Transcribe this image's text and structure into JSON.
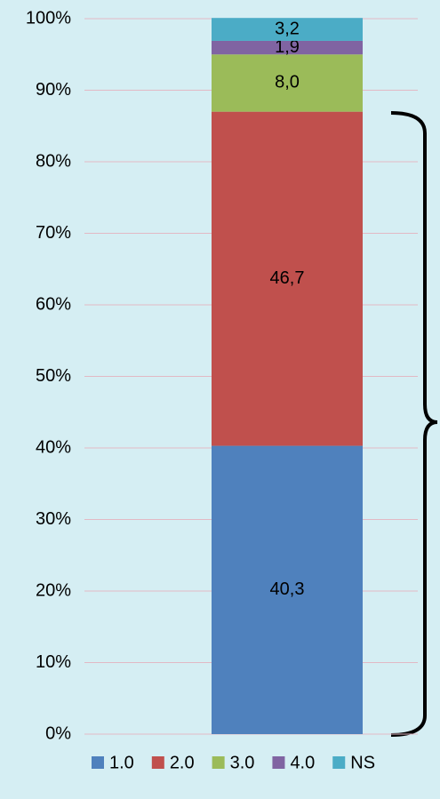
{
  "chart_data": {
    "type": "stacked_bar",
    "categories": [
      null
    ],
    "series": [
      {
        "name": "1.0",
        "color": "#4f81bd",
        "values": [
          40.3
        ],
        "value_labels": [
          "40,3"
        ]
      },
      {
        "name": "2.0",
        "color": "#c0504d",
        "values": [
          46.7
        ],
        "value_labels": [
          "46,7"
        ]
      },
      {
        "name": "3.0",
        "color": "#9bbb59",
        "values": [
          8.0
        ],
        "value_labels": [
          "8,0"
        ]
      },
      {
        "name": "4.0",
        "color": "#8064a2",
        "values": [
          1.9
        ],
        "value_labels": [
          "1,9"
        ]
      },
      {
        "name": "NS",
        "color": "#4bacc6",
        "values": [
          3.2
        ],
        "value_labels": [
          "3,2"
        ]
      }
    ],
    "ylim": [
      0,
      100
    ],
    "yticks": [
      {
        "value": 0,
        "label": "0%"
      },
      {
        "value": 10,
        "label": "10%"
      },
      {
        "value": 20,
        "label": "20%"
      },
      {
        "value": 30,
        "label": "30%"
      },
      {
        "value": 40,
        "label": "40%"
      },
      {
        "value": 50,
        "label": "50%"
      },
      {
        "value": 60,
        "label": "60%"
      },
      {
        "value": 70,
        "label": "70%"
      },
      {
        "value": 80,
        "label": "80%"
      },
      {
        "value": 90,
        "label": "90%"
      },
      {
        "value": 100,
        "label": "100%"
      }
    ],
    "grid": true,
    "legend": "bottom"
  }
}
